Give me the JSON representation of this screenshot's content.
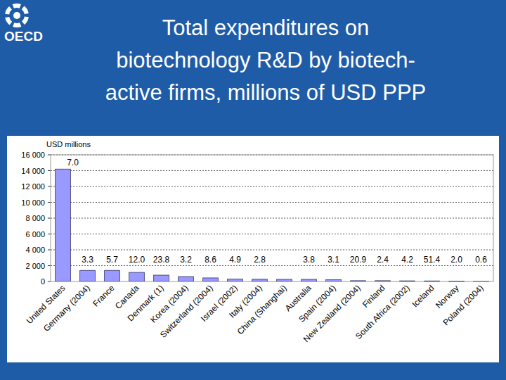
{
  "header": {
    "logo": "OECD"
  },
  "chart_data": {
    "type": "bar",
    "title": "Total expenditures on\nbiotechnology R&D by biotech-\nactive firms, millions of USD PPP",
    "y_label": "USD millions",
    "categories": [
      "United States",
      "Germany (2004)",
      "France",
      "Canada",
      "Denmark (1)",
      "Korea (2004)",
      "Switzerland (2004)",
      "Israel (2002)",
      "Italy (2004)",
      "China (Shanghai)",
      "Australia",
      "Spain (2004)",
      "New Zealand (2004)",
      "Finland",
      "South Africa (2002)",
      "Iceland",
      "Norway",
      "Poland (2004)"
    ],
    "values": [
      14200,
      1400,
      1400,
      1150,
      800,
      620,
      450,
      300,
      280,
      270,
      270,
      230,
      100,
      100,
      80,
      70,
      50,
      30
    ],
    "annotations": [
      "7.0",
      "3.3",
      "5.7",
      "12.0",
      "23.8",
      "3.2",
      "8.6",
      "4.9",
      "2.8",
      null,
      "3.8",
      "3.1",
      "20.9",
      "2.4",
      "4.2",
      "51.4",
      "2.0",
      "0.6"
    ],
    "color": "#9999ff",
    "ylim": [
      0,
      16000
    ],
    "yticks": [
      {
        "value": 0,
        "label": "0"
      },
      {
        "value": 2000,
        "label": "2 000"
      },
      {
        "value": 4000,
        "label": "4 000"
      },
      {
        "value": 6000,
        "label": "6 000"
      },
      {
        "value": 8000,
        "label": "8 000"
      },
      {
        "value": 10000,
        "label": "10 000"
      },
      {
        "value": 12000,
        "label": "12 000"
      },
      {
        "value": 14000,
        "label": "14 000"
      },
      {
        "value": 16000,
        "label": "16 000"
      }
    ],
    "grid": true
  }
}
